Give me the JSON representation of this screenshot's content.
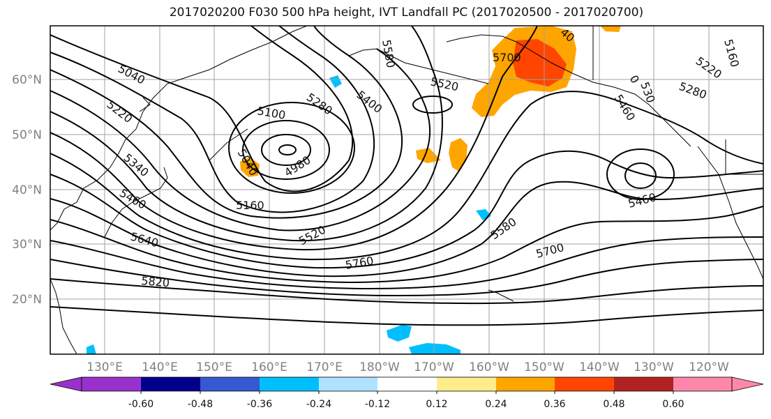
{
  "title": "2017020200 F030 500 hPa height, IVT Landfall PC (2017020500 - 2017020700)",
  "lat_labels": [
    "60°N",
    "50°N",
    "40°N",
    "30°N",
    "20°N"
  ],
  "lon_labels": [
    "130°E",
    "140°E",
    "150°E",
    "160°E",
    "170°E",
    "180°W",
    "170°W",
    "160°W",
    "150°W",
    "140°W",
    "130°W",
    "120°W"
  ],
  "contour_labels": [
    "5040",
    "5220",
    "5340",
    "5460",
    "5640",
    "5820",
    "5100",
    "4980",
    "5160",
    "5040",
    "5280",
    "5400",
    "5520",
    "5760",
    "5580",
    "5700",
    "5700",
    "5580",
    "5520",
    "5460",
    "5280",
    "5220",
    "5460",
    "5160",
    "40",
    "0",
    "530"
  ],
  "colorbar": {
    "ticks": [
      "-0.60",
      "-0.48",
      "-0.36",
      "-0.24",
      "-0.12",
      "0.12",
      "0.24",
      "0.36",
      "0.48",
      "0.60"
    ],
    "colors": [
      "#9932cc",
      "#00008b",
      "#3658d0",
      "#00bfff",
      "#b0e2ff",
      "#ffffff",
      "#ffec8b",
      "#ffa500",
      "#ff4500",
      "#b22222",
      "#ff88aa"
    ]
  },
  "colors": {
    "contour": "#000000",
    "orange": "#ffa500",
    "red": "#ff4500",
    "light_yellow": "#ffec8b",
    "cyan": "#00bfff",
    "grid": "#a0a0a0",
    "axis_label": "#808080"
  }
}
